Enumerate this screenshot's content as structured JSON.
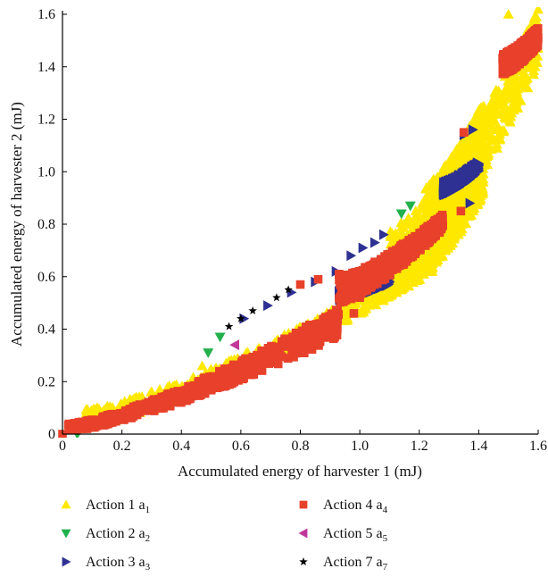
{
  "chart_data": {
    "type": "scatter",
    "title": "",
    "xlabel": "Accumulated energy of harvester 1 (mJ)",
    "ylabel": "Accumulated energy of harvester 2 (mJ)",
    "xlim": [
      0,
      1.6
    ],
    "ylim": [
      0,
      1.6
    ],
    "xticks": [
      "0",
      "0.2",
      "0.4",
      "0.6",
      "0.8",
      "1.0",
      "1.2",
      "1.4",
      "1.6"
    ],
    "yticks": [
      "0",
      "0.2",
      "0.4",
      "0.6",
      "0.8",
      "1.0",
      "1.2",
      "1.4",
      "1.6"
    ],
    "grid": false,
    "legend_position": "bottom",
    "series": [
      {
        "name": "Action 1 a1",
        "label_main": "Action 1 a",
        "label_sub": "1",
        "marker": "triangle-up",
        "color": "#FFE800",
        "bands": [
          {
            "x0": 0.08,
            "x1": 1.25,
            "ylo": [
              0.03,
              0.62
            ],
            "yhi": [
              0.1,
              0.7
            ]
          },
          {
            "x0": 1.1,
            "x1": 1.6,
            "ylo": [
              0.52,
              1.4
            ],
            "yhi": [
              0.78,
              1.62
            ]
          },
          {
            "x0": 1.22,
            "x1": 1.42,
            "ylo": [
              0.62,
              0.92
            ],
            "yhi": [
              0.95,
              1.28
            ]
          }
        ],
        "points": [
          [
            1.05,
            0.62
          ],
          [
            1.12,
            0.72
          ],
          [
            1.17,
            0.76
          ],
          [
            1.2,
            0.68
          ],
          [
            1.3,
            0.82
          ],
          [
            1.5,
            1.6
          ],
          [
            1.58,
            1.55
          ],
          [
            0.31,
            0.14
          ],
          [
            0.47,
            0.26
          ],
          [
            0.55,
            0.27
          ]
        ]
      },
      {
        "name": "Action 2 a2",
        "label_main": "Action 2 a",
        "label_sub": "2",
        "marker": "triangle-down",
        "color": "#22B14C",
        "points": [
          [
            0.05,
            0.0
          ],
          [
            0.53,
            0.37
          ],
          [
            0.49,
            0.31
          ],
          [
            1.14,
            0.84
          ],
          [
            1.17,
            0.87
          ]
        ]
      },
      {
        "name": "Action 3 a3",
        "label_main": "Action 3 a",
        "label_sub": "3",
        "marker": "triangle-right",
        "color": "#2E3192",
        "bands": [
          {
            "x0": 0.93,
            "x1": 1.1,
            "ylo": [
              0.51,
              0.57
            ],
            "yhi": [
              0.55,
              0.62
            ]
          },
          {
            "x0": 1.28,
            "x1": 1.4,
            "ylo": [
              0.91,
              1.0
            ],
            "yhi": [
              0.96,
              1.04
            ]
          }
        ],
        "points": [
          [
            0.61,
            0.44
          ],
          [
            0.69,
            0.49
          ],
          [
            0.77,
            0.54
          ],
          [
            0.85,
            0.58
          ],
          [
            0.92,
            0.62
          ],
          [
            0.97,
            0.68
          ],
          [
            1.01,
            0.71
          ],
          [
            1.05,
            0.73
          ],
          [
            1.08,
            0.76
          ],
          [
            1.37,
            0.88
          ],
          [
            1.35,
            1.14
          ],
          [
            1.38,
            1.16
          ]
        ]
      },
      {
        "name": "Action 4 a4",
        "label_main": "Action 4 a",
        "label_sub": "4",
        "marker": "square",
        "color": "#E8412B",
        "bands": [
          {
            "x0": 0.02,
            "x1": 0.93,
            "ylo": [
              0.01,
              0.37
            ],
            "yhi": [
              0.04,
              0.48
            ]
          },
          {
            "x0": 0.93,
            "x1": 1.28,
            "ylo": [
              0.5,
              0.78
            ],
            "yhi": [
              0.6,
              0.84
            ]
          },
          {
            "x0": 1.48,
            "x1": 1.6,
            "ylo": [
              1.37,
              1.48
            ],
            "yhi": [
              1.45,
              1.55
            ]
          }
        ],
        "points": [
          [
            0.0,
            0.0
          ],
          [
            0.8,
            0.57
          ],
          [
            0.86,
            0.59
          ],
          [
            0.93,
            0.61
          ],
          [
            1.0,
            0.52
          ],
          [
            1.34,
            0.85
          ],
          [
            1.35,
            1.15
          ],
          [
            0.98,
            0.46
          ]
        ]
      },
      {
        "name": "Action 5 a5",
        "label_main": "Action 5 a",
        "label_sub": "5",
        "marker": "triangle-left",
        "color": "#C2379A",
        "points": [
          [
            0.58,
            0.34
          ]
        ]
      },
      {
        "name": "Action 7 a7",
        "label_main": "Action 7 a",
        "label_sub": "7",
        "marker": "star",
        "color": "#000000",
        "points": [
          [
            0.56,
            0.41
          ],
          [
            0.6,
            0.44
          ],
          [
            0.64,
            0.47
          ],
          [
            0.72,
            0.52
          ],
          [
            0.76,
            0.55
          ]
        ]
      }
    ]
  }
}
